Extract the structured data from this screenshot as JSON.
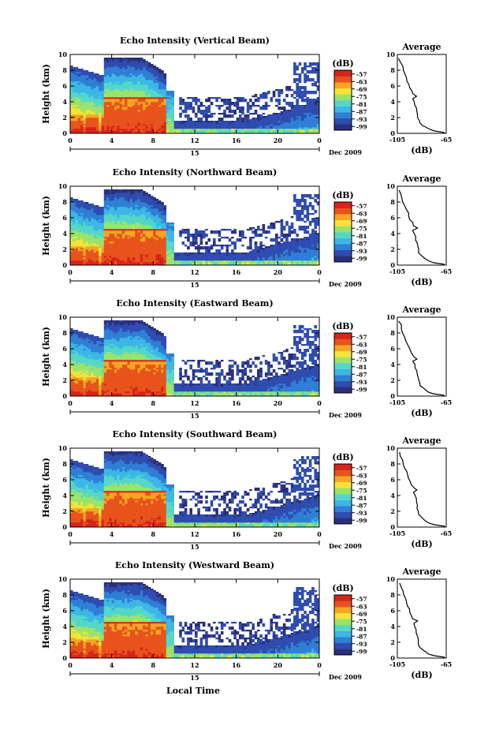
{
  "chart_data": {
    "type": "heatmap",
    "date_label": "Dec 2009",
    "x_label": "Local Time",
    "day_label": "15",
    "x_ticks": [
      "0",
      "4",
      "8",
      "12",
      "16",
      "20",
      "0"
    ],
    "xlim_hours": [
      0,
      24
    ],
    "y_label": "Height (km)",
    "y_ticks": [
      "0",
      "2",
      "4",
      "6",
      "8",
      "10"
    ],
    "ylim_km": [
      0,
      10
    ],
    "colorbar": {
      "unit": "(dB)",
      "tick_labels": [
        "-57",
        "-63",
        "-69",
        "-75",
        "-81",
        "-87",
        "-93",
        "-99"
      ],
      "range_db": [
        -102,
        -54
      ],
      "colors": [
        "#2b2f7a",
        "#2f4cb0",
        "#2f7fd6",
        "#3cb7e6",
        "#55d7c8",
        "#9be36a",
        "#f4e438",
        "#f4a623",
        "#e8531c",
        "#d6241a"
      ]
    },
    "profile": {
      "title": "Average",
      "x_label": "(dB)",
      "x_ticks": [
        "-105",
        "-65"
      ],
      "xlim_db": [
        -105,
        -65
      ],
      "y_ticks": [
        "0",
        "2",
        "4",
        "6",
        "8",
        "10"
      ],
      "heights_km": [
        0.1,
        0.3,
        0.5,
        0.8,
        1.0,
        1.3,
        1.6,
        2.0,
        2.4,
        2.8,
        3.2,
        3.6,
        4.0,
        4.4,
        4.7,
        5.0,
        5.4,
        5.8,
        6.2,
        6.6,
        7.0,
        7.5,
        8.0,
        8.5,
        9.0,
        9.5
      ],
      "db": [
        -66,
        -75,
        -79,
        -82,
        -84,
        -86,
        -87,
        -88,
        -88.5,
        -89,
        -89.5,
        -90,
        -91,
        -92,
        -89,
        -92,
        -93,
        -95,
        -95.5,
        -96.5,
        -97.5,
        -98.5,
        -100,
        -101,
        -102,
        -103.5
      ]
    },
    "panels": [
      {
        "title": "Echo Intensity (Vertical Beam)"
      },
      {
        "title": "Echo Intensity (Northward Beam)"
      },
      {
        "title": "Echo Intensity (Eastward Beam)"
      },
      {
        "title": "Echo Intensity (Southward Beam)"
      },
      {
        "title": "Echo Intensity (Westward Beam)"
      }
    ]
  }
}
